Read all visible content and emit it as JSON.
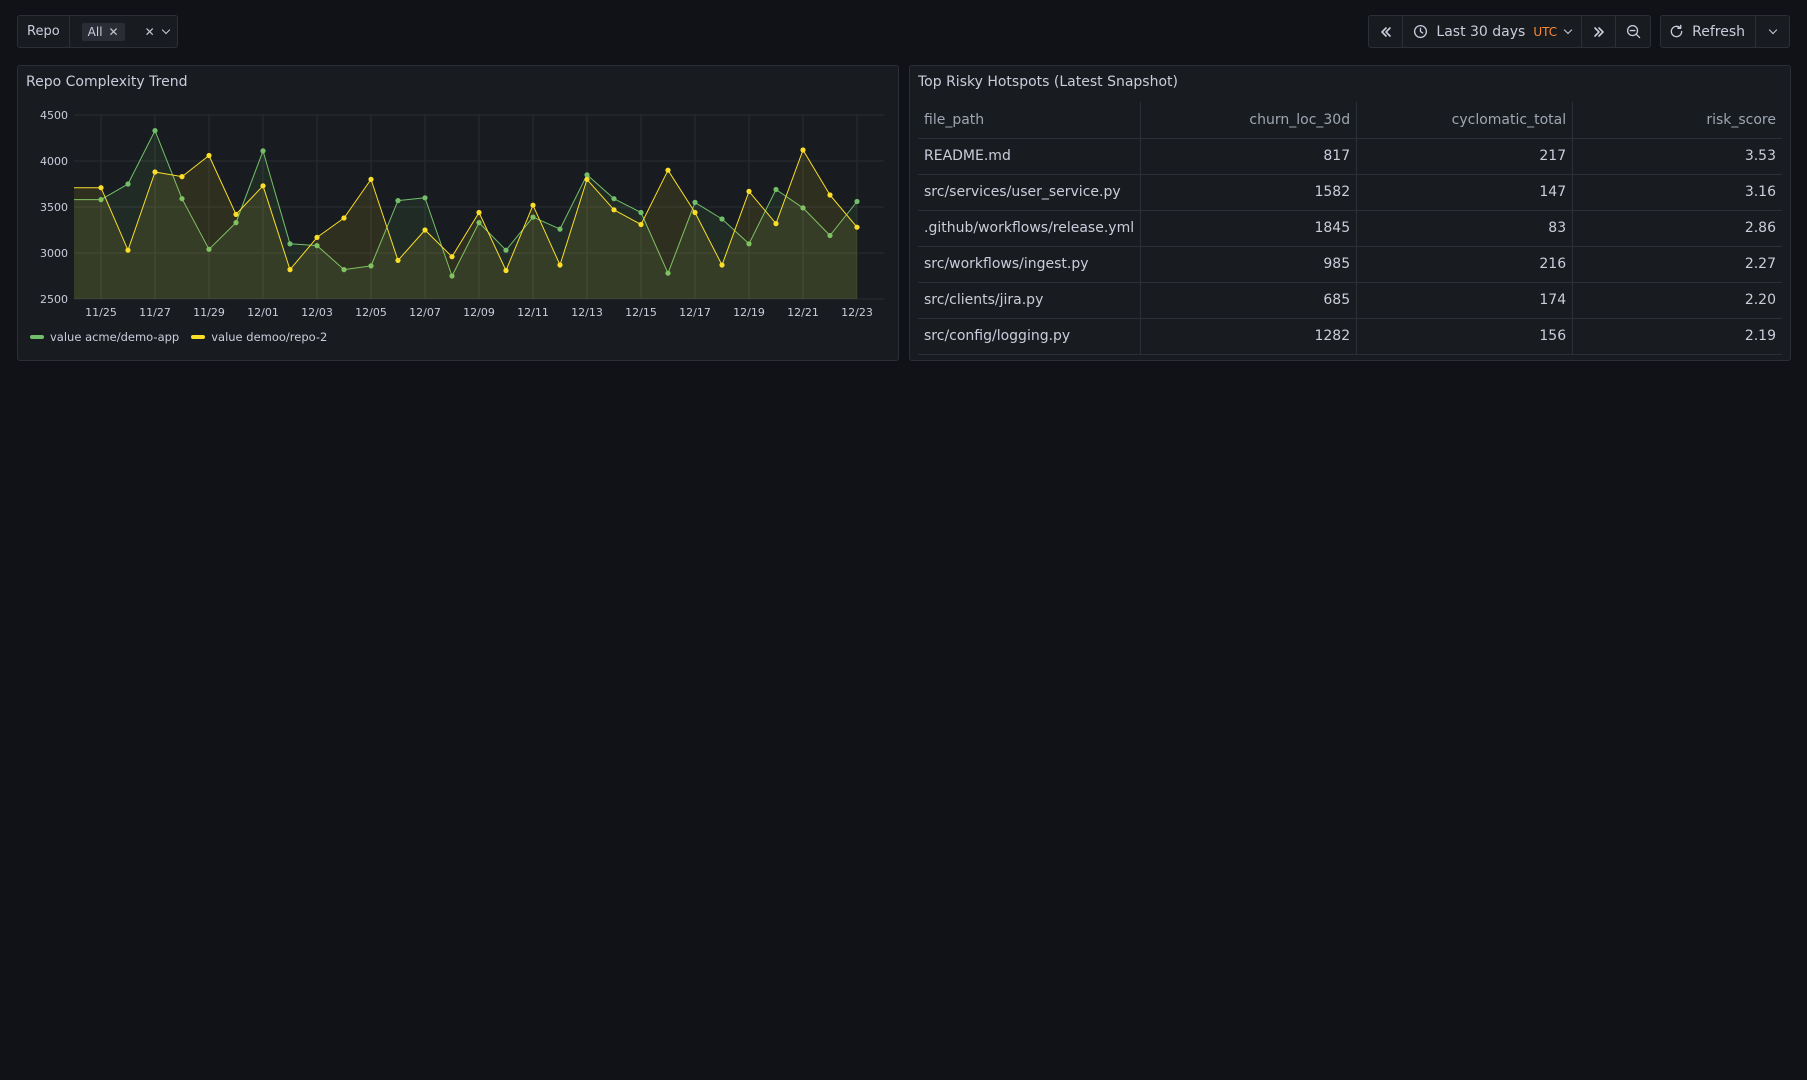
{
  "variables": {
    "repo_label": "Repo",
    "repo_value": "All"
  },
  "time_controls": {
    "range_label": "Last 30 days",
    "timezone": "UTC",
    "refresh_label": "Refresh"
  },
  "colors": {
    "background": "#111217",
    "panel": "#181b1f",
    "series_green": "#73bf69",
    "series_yellow": "#fade2a",
    "utc_accent": "#ff8833"
  },
  "chart_panel": {
    "title": "Repo Complexity Trend"
  },
  "chart_data": {
    "type": "line",
    "title": "Repo Complexity Trend",
    "x_tick_labels": [
      "11/25",
      "11/27",
      "11/29",
      "12/01",
      "12/03",
      "12/05",
      "12/07",
      "12/09",
      "12/11",
      "12/13",
      "12/15",
      "12/17",
      "12/19",
      "12/21",
      "12/23"
    ],
    "y_tick_labels": [
      "2500",
      "3000",
      "3500",
      "4000",
      "4500"
    ],
    "ylim": [
      2500,
      4500
    ],
    "x_start": "11/24",
    "x_end": "12/24",
    "grid": true,
    "fill": "area",
    "legend_placement": "bottom-left",
    "series": [
      {
        "name": "value acme/demo-app",
        "color": "#73bf69",
        "x": [
          "11/25",
          "11/26",
          "11/27",
          "11/28",
          "11/29",
          "11/30",
          "12/01",
          "12/02",
          "12/03",
          "12/04",
          "12/05",
          "12/06",
          "12/07",
          "12/08",
          "12/09",
          "12/10",
          "12/11",
          "12/12",
          "12/13",
          "12/14",
          "12/15",
          "12/16",
          "12/17",
          "12/18",
          "12/19",
          "12/20",
          "12/21",
          "12/22",
          "12/23"
        ],
        "values": [
          3580,
          3750,
          4330,
          3590,
          3040,
          3330,
          4110,
          3100,
          3080,
          2820,
          2860,
          3570,
          3600,
          2750,
          3330,
          3030,
          3390,
          3260,
          3850,
          3590,
          3440,
          2780,
          3550,
          3370,
          3100,
          3690,
          3490,
          3190,
          3560
        ]
      },
      {
        "name": "value demoo/repo-2",
        "color": "#fade2a",
        "x": [
          "11/25",
          "11/26",
          "11/27",
          "11/28",
          "11/29",
          "11/30",
          "12/01",
          "12/02",
          "12/03",
          "12/04",
          "12/05",
          "12/06",
          "12/07",
          "12/08",
          "12/09",
          "12/10",
          "12/11",
          "12/12",
          "12/13",
          "12/14",
          "12/15",
          "12/16",
          "12/17",
          "12/18",
          "12/19",
          "12/20",
          "12/21",
          "12/22",
          "12/23"
        ],
        "values": [
          3710,
          3030,
          3880,
          3830,
          4060,
          3420,
          3730,
          2820,
          3170,
          3380,
          3800,
          2920,
          3250,
          2960,
          3440,
          2810,
          3520,
          2870,
          3800,
          3470,
          3310,
          3900,
          3440,
          2870,
          3670,
          3320,
          4120,
          3630,
          3280
        ]
      }
    ]
  },
  "table_panel": {
    "title": "Top Risky Hotspots (Latest Snapshot)",
    "columns": [
      "file_path",
      "churn_loc_30d",
      "cyclomatic_total",
      "risk_score"
    ],
    "rows": [
      [
        "README.md",
        "817",
        "217",
        "3.53"
      ],
      [
        "src/services/user_service.py",
        "1582",
        "147",
        "3.16"
      ],
      [
        ".github/workflows/release.yml",
        "1845",
        "83",
        "2.86"
      ],
      [
        "src/workflows/ingest.py",
        "985",
        "216",
        "2.27"
      ],
      [
        "src/clients/jira.py",
        "685",
        "174",
        "2.20"
      ],
      [
        "src/config/logging.py",
        "1282",
        "156",
        "2.19"
      ]
    ]
  }
}
